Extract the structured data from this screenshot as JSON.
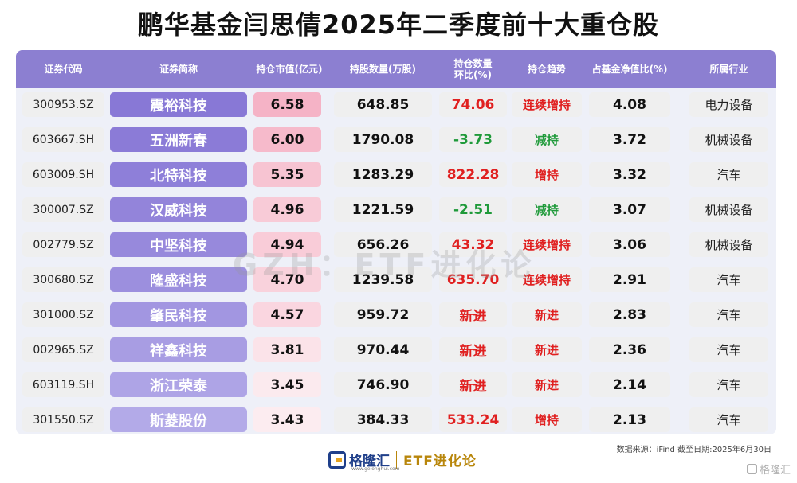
{
  "title": "鹏华基金闫思倩2025年二季度前十大重仓股",
  "headers": [
    "证券代码",
    "证券简称",
    "持仓市值(亿元)",
    "持股数量(万股)",
    "持仓数量\n环比(%)",
    "持仓趋势",
    "占基金净值比(%)",
    "所属行业"
  ],
  "rows": [
    {
      "code": "300953.SZ",
      "name": "震裕科技",
      "mv": "6.58",
      "qty": "648.85",
      "chg": "74.06",
      "trend": "连续增持",
      "pct": "4.08",
      "industry": "电力设备",
      "chg_color": "red",
      "trend_color": "red",
      "name_bg": "#8878d6",
      "mv_bg": "#f5b3c6"
    },
    {
      "code": "603667.SH",
      "name": "五洲新春",
      "mv": "6.00",
      "qty": "1790.08",
      "chg": "-3.73",
      "trend": "减持",
      "pct": "3.72",
      "industry": "机械设备",
      "chg_color": "green",
      "trend_color": "green",
      "name_bg": "#8b7bd7",
      "mv_bg": "#f6bacb"
    },
    {
      "code": "603009.SH",
      "name": "北特科技",
      "mv": "5.35",
      "qty": "1283.29",
      "chg": "822.28",
      "trend": "增持",
      "pct": "3.32",
      "industry": "汽车",
      "chg_color": "red",
      "trend_color": "red",
      "name_bg": "#8e7fd9",
      "mv_bg": "#f7c4d2"
    },
    {
      "code": "300007.SZ",
      "name": "汉威科技",
      "mv": "4.96",
      "qty": "1221.59",
      "chg": "-2.51",
      "trend": "减持",
      "pct": "3.07",
      "industry": "机械设备",
      "chg_color": "green",
      "trend_color": "green",
      "name_bg": "#9384da",
      "mv_bg": "#f8cbd7"
    },
    {
      "code": "002779.SZ",
      "name": "中坚科技",
      "mv": "4.94",
      "qty": "656.26",
      "chg": "43.32",
      "trend": "连续增持",
      "pct": "3.06",
      "industry": "机械设备",
      "chg_color": "red",
      "trend_color": "red",
      "name_bg": "#9789dc",
      "mv_bg": "#f9ccd8"
    },
    {
      "code": "300680.SZ",
      "name": "隆盛科技",
      "mv": "4.70",
      "qty": "1239.58",
      "chg": "635.70",
      "trend": "连续增持",
      "pct": "2.91",
      "industry": "汽车",
      "chg_color": "red",
      "trend_color": "red",
      "name_bg": "#9c8fde",
      "mv_bg": "#f9d2dc"
    },
    {
      "code": "301000.SZ",
      "name": "肇民科技",
      "mv": "4.57",
      "qty": "959.72",
      "chg": "新进",
      "trend": "新进",
      "pct": "2.83",
      "industry": "汽车",
      "chg_color": "red",
      "trend_color": "red",
      "name_bg": "#a296e1",
      "mv_bg": "#fad6e0"
    },
    {
      "code": "002965.SZ",
      "name": "祥鑫科技",
      "mv": "3.81",
      "qty": "970.44",
      "chg": "新进",
      "trend": "新进",
      "pct": "2.36",
      "industry": "汽车",
      "chg_color": "red",
      "trend_color": "red",
      "name_bg": "#a89de3",
      "mv_bg": "#fbe3e9"
    },
    {
      "code": "603119.SH",
      "name": "浙江荣泰",
      "mv": "3.45",
      "qty": "746.90",
      "chg": "新进",
      "trend": "新进",
      "pct": "2.14",
      "industry": "汽车",
      "chg_color": "red",
      "trend_color": "red",
      "name_bg": "#aea4e6",
      "mv_bg": "#fbeaee"
    },
    {
      "code": "301550.SZ",
      "name": "斯菱股份",
      "mv": "3.43",
      "qty": "384.33",
      "chg": "533.24",
      "trend": "增持",
      "pct": "2.13",
      "industry": "汽车",
      "chg_color": "red",
      "trend_color": "red",
      "name_bg": "#b3aae8",
      "mv_bg": "#fcecf0"
    }
  ],
  "watermark": "GZH：ETF进化论",
  "source": "数据来源：iFind 截至日期:2025年6月30日",
  "footer": {
    "logo_name": "格隆汇",
    "logo_url": "www.gelonghui.com",
    "brand": "ETF进化论",
    "corner": "格隆汇"
  },
  "colors": {
    "header_bg": "#8c7fd1",
    "red": "#e02020",
    "green": "#1f9a3a"
  }
}
